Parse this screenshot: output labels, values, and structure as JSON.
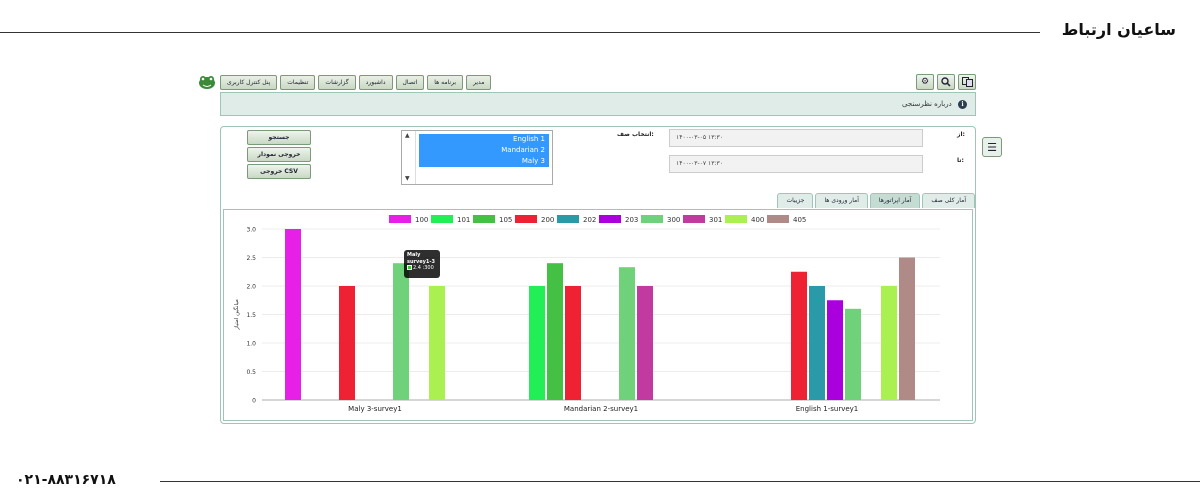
{
  "page": {
    "brand": "ساعیان ارتباط",
    "phone": "۰۲۱-۸۸۳۱۶۷۱۸"
  },
  "menu": {
    "items": [
      "مدیر",
      "برنامه ها",
      "اتصال",
      "داشبورد",
      "گزارشات",
      "تنظیمات",
      "پنل کنترل کاربری"
    ],
    "tools": [
      "settings-icon",
      "search-icon",
      "language-icon"
    ]
  },
  "info_bar": {
    "text": "درباره نظرسنجی"
  },
  "actions": {
    "search": "جستجو",
    "export_chart": "خروجی نمودار",
    "export_csv": "خروجی CSV"
  },
  "queue_select": {
    "label": "انتخاب صف:",
    "options": [
      "English 1",
      "Mandarian 2",
      "Maly 3"
    ]
  },
  "filters": {
    "from_label": "از:",
    "from_value": "۱۴۰۰-۰۳-۰۵ ۱۳:۳۰",
    "to_label": "تا:",
    "to_value": "۱۴۰۰-۰۳-۰۷ ۱۳:۳۰"
  },
  "tabs": [
    "آمار کلی صف",
    "آمار اپراتورها",
    "آمار ورودی ها",
    "جزییات"
  ],
  "tooltip": {
    "title": "Maly",
    "subtitle": "survey1-3",
    "value": "2.4 :300"
  },
  "chart_data": {
    "type": "bar",
    "ylabel": "میانگین امتیاز",
    "ylim": [
      0,
      3
    ],
    "yticks": [
      "3.0",
      "2.5",
      "2.0",
      "1.5",
      "1.0",
      "0.5",
      "0"
    ],
    "categories": [
      "Maly  3-survey1",
      "Mandarian  2-survey1",
      "English 1-survey1"
    ],
    "legend_position": "top",
    "series": [
      {
        "name": "100",
        "color": "#e620e6",
        "values": [
          3.0,
          null,
          null
        ]
      },
      {
        "name": "101",
        "color": "#22ee55",
        "values": [
          null,
          2.0,
          null
        ]
      },
      {
        "name": "105",
        "color": "#44c044",
        "values": [
          null,
          2.4,
          null
        ]
      },
      {
        "name": "200",
        "color": "#ee2233",
        "values": [
          2.0,
          2.0,
          2.25
        ]
      },
      {
        "name": "202",
        "color": "#2b9aa8",
        "values": [
          null,
          null,
          2.0
        ]
      },
      {
        "name": "203",
        "color": "#aa00dd",
        "values": [
          null,
          null,
          1.75
        ]
      },
      {
        "name": "300",
        "color": "#6fd17a",
        "values": [
          2.4,
          2.33,
          1.6
        ]
      },
      {
        "name": "301",
        "color": "#c13aa0",
        "values": [
          null,
          2.0,
          null
        ]
      },
      {
        "name": "400",
        "color": "#aaf050",
        "values": [
          2.0,
          null,
          2.0
        ]
      },
      {
        "name": "405",
        "color": "#b08a86",
        "values": [
          null,
          null,
          2.5
        ]
      }
    ]
  }
}
